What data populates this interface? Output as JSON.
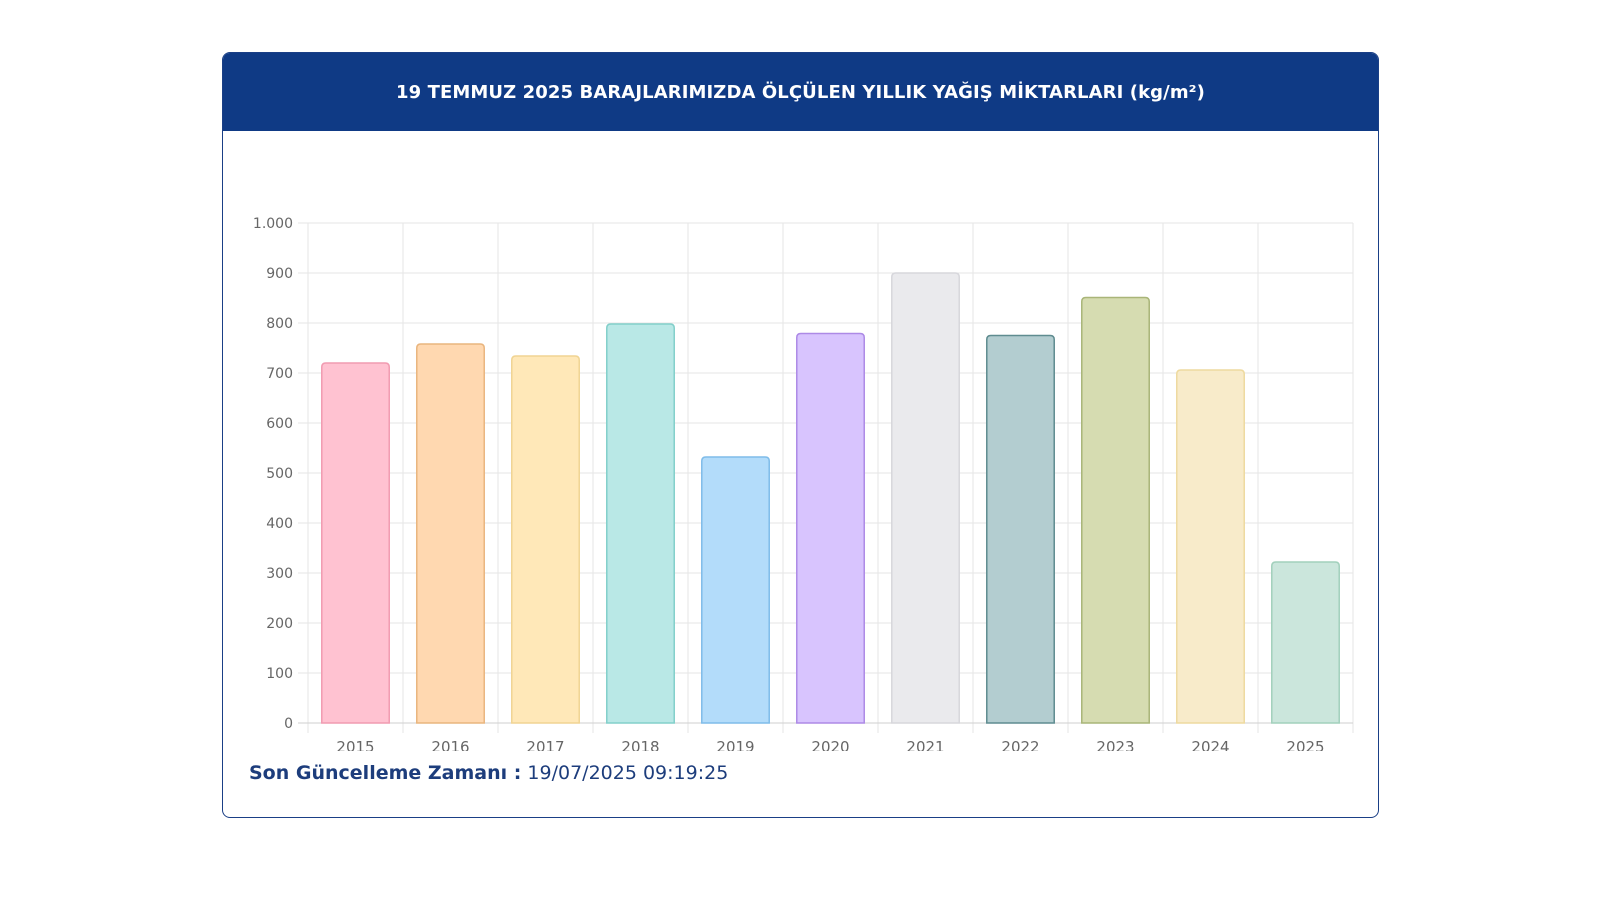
{
  "header": {
    "title": "19 TEMMUZ 2025 BARAJLARIMIZDA ÖLÇÜLEN YILLIK YAĞIŞ MİKTARLARI (kg/m²)"
  },
  "footer": {
    "label": "Son Güncelleme Zamanı :",
    "value": "19/07/2025 09:19:25"
  },
  "chart_data": {
    "type": "bar",
    "title": "19 TEMMUZ 2025 BARAJLARIMIZDA ÖLÇÜLEN YILLIK YAĞIŞ MİKTARLARI (kg/m²)",
    "xlabel": "",
    "ylabel": "",
    "ylim": [
      0,
      1000
    ],
    "yticks": [
      0,
      100,
      200,
      300,
      400,
      500,
      600,
      700,
      800,
      900,
      1000
    ],
    "ytick_labels": [
      "0",
      "100",
      "200",
      "300",
      "400",
      "500",
      "600",
      "700",
      "800",
      "900",
      "1.000"
    ],
    "grid": true,
    "legend": "none",
    "categories": [
      "2015",
      "2016",
      "2017",
      "2018",
      "2019",
      "2020",
      "2021",
      "2022",
      "2023",
      "2024",
      "2025"
    ],
    "values": [
      720,
      758,
      734,
      798,
      532,
      779,
      900,
      775,
      851,
      706,
      322
    ],
    "fill_colors": [
      "#ffc2d1",
      "#ffd8b0",
      "#ffe8b8",
      "#b9e8e6",
      "#b3dcfa",
      "#d8c4fe",
      "#eaeaed",
      "#b3cdd0",
      "#d6dcb1",
      "#f8ebca",
      "#cbe6dc"
    ],
    "stroke_colors": [
      "#f19bb1",
      "#e9b57e",
      "#f0d493",
      "#82cfca",
      "#7fbce9",
      "#ad8ae6",
      "#d7d7dc",
      "#5f8c90",
      "#a9b578",
      "#eeda9f",
      "#a2d0bc"
    ]
  }
}
